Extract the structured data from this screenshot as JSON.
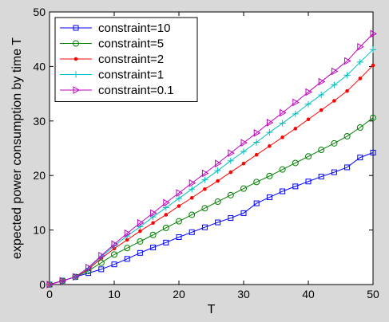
{
  "chart_data": {
    "type": "line",
    "title": "",
    "xlabel": "T",
    "ylabel": "expected power consumption by time T",
    "xlim": [
      0,
      50
    ],
    "ylim": [
      0,
      50
    ],
    "xticks": [
      0,
      10,
      20,
      30,
      40,
      50
    ],
    "yticks": [
      0,
      10,
      20,
      30,
      40,
      50
    ],
    "grid": false,
    "legend_position": "top-left",
    "x": [
      0,
      2,
      4,
      6,
      8,
      10,
      12,
      14,
      16,
      18,
      20,
      22,
      24,
      26,
      28,
      30,
      32,
      34,
      36,
      38,
      40,
      42,
      44,
      46,
      48,
      50
    ],
    "series": [
      {
        "name": "constraint=10",
        "color": "#0000ff",
        "marker": "square",
        "values": [
          0,
          0.7,
          1.4,
          2.1,
          2.8,
          3.7,
          4.7,
          5.8,
          6.8,
          7.7,
          8.7,
          9.6,
          10.5,
          11.4,
          12.2,
          13.1,
          14.9,
          16.0,
          17.1,
          18.0,
          18.9,
          19.8,
          20.6,
          21.5,
          23.3,
          24.2
        ]
      },
      {
        "name": "constraint=5",
        "color": "#008000",
        "marker": "circle",
        "values": [
          0,
          0.7,
          1.4,
          2.5,
          4.0,
          5.5,
          6.7,
          7.9,
          9.1,
          10.4,
          11.6,
          12.8,
          14.0,
          15.2,
          16.4,
          17.6,
          18.8,
          19.9,
          21.1,
          22.3,
          23.5,
          24.7,
          25.9,
          27.2,
          28.8,
          30.6
        ]
      },
      {
        "name": "constraint=2",
        "color": "#ff0000",
        "marker": "dot",
        "values": [
          0,
          0.7,
          1.4,
          2.8,
          4.8,
          6.6,
          8.2,
          9.8,
          11.3,
          12.8,
          14.4,
          15.9,
          17.5,
          19.0,
          20.6,
          22.2,
          23.8,
          25.4,
          27.0,
          28.6,
          30.3,
          32.0,
          33.7,
          35.5,
          37.8,
          40.2
        ]
      },
      {
        "name": "constraint=1",
        "color": "#00bfbf",
        "marker": "plus",
        "values": [
          0,
          0.7,
          1.4,
          3.0,
          5.1,
          7.1,
          8.9,
          10.6,
          12.4,
          14.1,
          15.8,
          17.5,
          19.2,
          20.9,
          22.7,
          24.4,
          26.1,
          27.9,
          29.6,
          31.3,
          33.1,
          34.8,
          36.6,
          38.4,
          40.8,
          43.1
        ]
      },
      {
        "name": "constraint=0.1",
        "color": "#bf00bf",
        "marker": "triangle-right",
        "values": [
          0,
          0.7,
          1.4,
          3.1,
          5.3,
          7.4,
          9.4,
          11.3,
          13.1,
          15.0,
          16.8,
          18.6,
          20.4,
          22.2,
          24.1,
          26.0,
          27.8,
          29.7,
          31.5,
          33.4,
          35.3,
          37.2,
          39.1,
          41.0,
          43.6,
          46.0
        ]
      }
    ]
  }
}
